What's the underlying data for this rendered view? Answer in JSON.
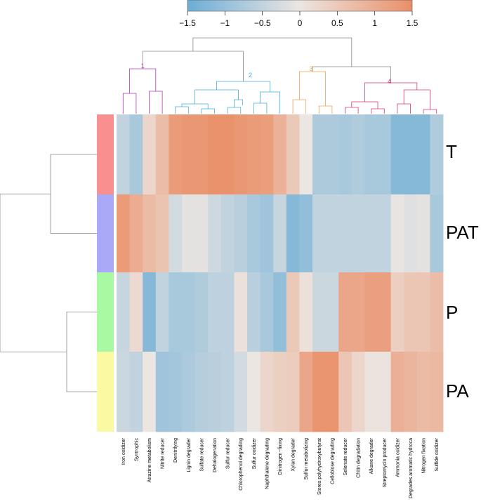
{
  "chart_data": {
    "type": "heatmap",
    "title": "",
    "color_scale": {
      "min": -1.5,
      "max": 1.5,
      "ticks": [
        -1.5,
        -1,
        -0.5,
        0,
        0.5,
        1,
        1.5
      ],
      "tick_labels": [
        "−1.5",
        "−1",
        "−0.5",
        "0",
        "0.5",
        "1",
        "1.5"
      ],
      "low_color": "#6cadd6",
      "mid_color": "#ece6e2",
      "high_color": "#ea8f68"
    },
    "rows": [
      {
        "label": "T",
        "color": "#fa8f8f"
      },
      {
        "label": "PAT",
        "color": "#a9a9f8"
      },
      {
        "label": "P",
        "color": "#a9f9a2"
      },
      {
        "label": "PA",
        "color": "#fafaa2"
      }
    ],
    "columns": [
      "Iron oxidizer",
      "Syntrophic",
      "Atrazine metabolism",
      "Nitrite reducer",
      "Denitrifying",
      "Lignin degrader",
      "Sulfate reducer",
      "Dehalogenation",
      "Sulfur reducer",
      "Chlorophenol degrading",
      "Sulfur oxidizer",
      "Naphthalene degrading",
      "Dinitrogen−fixing",
      "Xylan degrader",
      "Sulfur metabolizing",
      "Stores polyhydroxybutyrat",
      "Cellobiose degrading",
      "Selenate reducer",
      "Chitin degradation",
      "Alkane degrader",
      "Streptomycin producer",
      "Ammonia oxidizer",
      "Degrades aromatic hydroca",
      "Nitrogen fixation",
      "Sulfide oxidizer"
    ],
    "values": [
      [
        -0.5,
        -0.8,
        0.3,
        0.7,
        1.3,
        1.35,
        1.35,
        1.45,
        1.45,
        1.35,
        1.3,
        1.25,
        0.9,
        0.5,
        0.0,
        -0.75,
        -0.75,
        -0.8,
        -0.7,
        -0.8,
        -0.8,
        -1.2,
        -1.2,
        -1.2,
        -0.7
      ],
      [
        1.3,
        1.0,
        0.75,
        0.6,
        -0.3,
        -0.1,
        -0.1,
        -0.35,
        -0.5,
        -0.6,
        -0.8,
        -0.9,
        -0.45,
        -1.2,
        -1.05,
        -0.5,
        -0.5,
        -0.5,
        -0.5,
        -0.5,
        -0.5,
        -0.05,
        -0.15,
        -0.1,
        -0.8
      ],
      [
        -0.45,
        0.2,
        -1.2,
        -0.5,
        -0.8,
        -0.8,
        -0.7,
        -0.55,
        -0.55,
        0.1,
        -0.6,
        -0.8,
        -1.05,
        0.5,
        0.1,
        -0.4,
        -0.4,
        1.1,
        1.1,
        1.2,
        1.2,
        0.4,
        0.55,
        0.55,
        0.7
      ],
      [
        -0.4,
        -0.5,
        0.0,
        -0.9,
        -0.85,
        -0.75,
        -0.65,
        -0.6,
        -0.55,
        -0.3,
        0.0,
        0.3,
        0.4,
        0.45,
        1.1,
        1.4,
        1.4,
        0.55,
        0.3,
        0.05,
        0.05,
        0.95,
        0.85,
        0.75,
        0.8
      ]
    ],
    "column_clusters": [
      {
        "label": "1",
        "color": "#b339b3"
      },
      {
        "label": "2",
        "color": "#44aee0"
      },
      {
        "label": "3",
        "color": "#f0a050"
      },
      {
        "label": "4",
        "color": "#d93a6a"
      }
    ],
    "dendrogram_color": "#888888"
  }
}
